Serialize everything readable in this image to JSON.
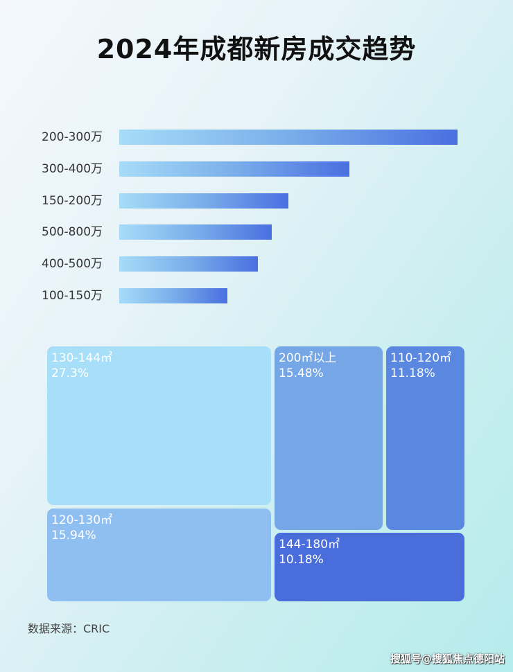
{
  "chart_data": [
    {
      "type": "bar",
      "orientation": "horizontal",
      "title": "2024年成都新房成交趋势",
      "categories": [
        "200-300万",
        "300-400万",
        "150-200万",
        "500-800万",
        "400-500万",
        "100-150万"
      ],
      "values": [
        100,
        68,
        50,
        45,
        41,
        32
      ],
      "value_note": "relative bar length, no axis printed",
      "bar_gradient": [
        "#a6dcf8",
        "#4a6fe0"
      ]
    },
    {
      "type": "treemap",
      "items": [
        {
          "label": "130-144㎡",
          "value": "27.3%",
          "color": "#a8dff8"
        },
        {
          "label": "120-130㎡",
          "value": "15.94%",
          "color": "#8fbff0"
        },
        {
          "label": "200㎡以上",
          "value": "15.48%",
          "color": "#75a6e6"
        },
        {
          "label": "110-120㎡",
          "value": "11.18%",
          "color": "#5a88e0"
        },
        {
          "label": "144-180㎡",
          "value": "10.18%",
          "color": "#4a6ddc"
        }
      ]
    }
  ],
  "source": "数据来源：CRIC",
  "watermark": "搜狐号@搜狐焦点德阳站"
}
